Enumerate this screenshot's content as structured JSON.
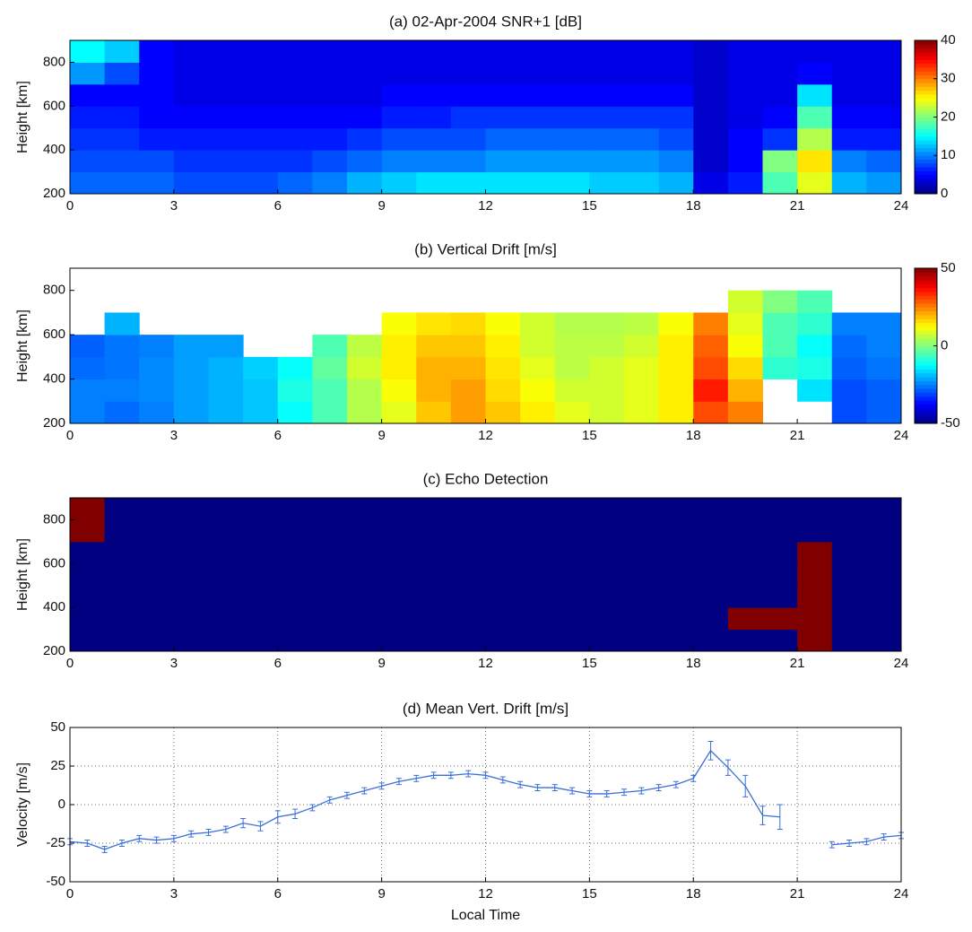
{
  "chart_data": [
    {
      "type": "heatmap",
      "title": "(a) 02-Apr-2004 SNR+1 [dB]",
      "y_label": "Height [km]",
      "colormap": "jet",
      "xlim": [
        0,
        24
      ],
      "xticks": [
        0,
        3,
        6,
        9,
        12,
        15,
        18,
        21,
        24
      ],
      "ylim": [
        200,
        900
      ],
      "yticks": [
        200,
        400,
        600,
        800
      ],
      "zlim": [
        0,
        40
      ],
      "zticks": [
        0,
        10,
        20,
        30,
        40
      ],
      "values": [
        [
          9,
          9,
          9,
          8,
          8,
          8,
          9,
          10,
          12,
          13,
          14,
          14,
          14,
          14,
          14,
          13,
          13,
          12,
          4,
          6,
          18,
          24,
          12,
          11
        ],
        [
          8,
          8,
          8,
          7,
          7,
          7,
          7,
          8,
          9,
          10,
          10,
          10,
          11,
          11,
          11,
          11,
          11,
          10,
          3,
          5,
          20,
          26,
          10,
          9
        ],
        [
          7,
          7,
          6,
          6,
          6,
          6,
          6,
          6,
          7,
          8,
          8,
          8,
          9,
          9,
          9,
          9,
          9,
          8,
          3,
          5,
          7,
          22,
          6,
          6
        ],
        [
          6,
          6,
          5,
          5,
          5,
          5,
          5,
          5,
          5,
          6,
          6,
          7,
          7,
          7,
          7,
          7,
          7,
          7,
          3,
          4,
          5,
          18,
          5,
          5
        ],
        [
          5,
          5,
          5,
          4,
          4,
          4,
          4,
          4,
          4,
          5,
          5,
          5,
          5,
          5,
          5,
          5,
          5,
          5,
          3,
          4,
          4,
          14,
          4,
          4
        ],
        [
          11,
          8,
          5,
          4,
          4,
          4,
          4,
          4,
          4,
          4,
          4,
          4,
          4,
          4,
          4,
          4,
          4,
          4,
          3,
          4,
          4,
          5,
          4,
          4
        ],
        [
          15,
          13,
          5,
          4,
          4,
          4,
          4,
          4,
          4,
          4,
          4,
          4,
          4,
          4,
          4,
          4,
          4,
          4,
          3,
          4,
          4,
          4,
          4,
          4
        ]
      ]
    },
    {
      "type": "heatmap",
      "title": "(b) Vertical Drift [m/s]",
      "y_label": "Height [km]",
      "colormap": "jet",
      "xlim": [
        0,
        24
      ],
      "xticks": [
        0,
        3,
        6,
        9,
        12,
        15,
        18,
        21,
        24
      ],
      "ylim": [
        200,
        900
      ],
      "yticks": [
        200,
        400,
        600,
        800
      ],
      "zlim": [
        -50,
        50
      ],
      "zticks": [
        -50,
        0,
        50
      ],
      "values": [
        [
          -25,
          -27,
          -25,
          -22,
          -20,
          -18,
          -12,
          -5,
          5,
          10,
          18,
          22,
          18,
          14,
          10,
          8,
          10,
          14,
          30,
          25,
          null,
          null,
          -30,
          -28
        ],
        [
          -25,
          -25,
          -24,
          -22,
          -20,
          -18,
          -10,
          -5,
          5,
          12,
          20,
          22,
          16,
          12,
          8,
          8,
          10,
          14,
          35,
          20,
          null,
          -15,
          -30,
          -28
        ],
        [
          -27,
          -26,
          -24,
          -22,
          -20,
          -17,
          -12,
          -3,
          8,
          14,
          20,
          20,
          15,
          10,
          6,
          8,
          10,
          14,
          30,
          16,
          -8,
          -10,
          -28,
          -26
        ],
        [
          -28,
          -26,
          -25,
          -22,
          -22,
          null,
          null,
          -5,
          6,
          14,
          18,
          18,
          14,
          8,
          6,
          6,
          8,
          14,
          28,
          12,
          -5,
          -12,
          -27,
          -25
        ],
        [
          null,
          -20,
          null,
          null,
          null,
          null,
          null,
          null,
          null,
          12,
          15,
          16,
          12,
          8,
          5,
          5,
          6,
          12,
          25,
          10,
          -5,
          -8,
          -25,
          -25
        ],
        [
          null,
          null,
          null,
          null,
          null,
          null,
          null,
          null,
          null,
          null,
          null,
          null,
          null,
          null,
          null,
          null,
          null,
          null,
          null,
          8,
          0,
          -5,
          null,
          null
        ],
        [
          null,
          null,
          null,
          null,
          null,
          null,
          null,
          null,
          null,
          null,
          null,
          null,
          null,
          null,
          null,
          null,
          null,
          null,
          null,
          null,
          null,
          null,
          null,
          null
        ]
      ]
    },
    {
      "type": "heatmap",
      "title": "(c) Echo Detection",
      "y_label": "Height [km]",
      "colormap": "jet",
      "xlim": [
        0,
        24
      ],
      "xticks": [
        0,
        3,
        6,
        9,
        12,
        15,
        18,
        21,
        24
      ],
      "ylim": [
        200,
        900
      ],
      "yticks": [
        200,
        400,
        600,
        800
      ],
      "zlim": [
        0,
        1
      ],
      "values": [
        [
          0,
          0,
          0,
          0,
          0,
          0,
          0,
          0,
          0,
          0,
          0,
          0,
          0,
          0,
          0,
          0,
          0,
          0,
          0,
          0,
          0,
          1,
          0,
          0
        ],
        [
          0,
          0,
          0,
          0,
          0,
          0,
          0,
          0,
          0,
          0,
          0,
          0,
          0,
          0,
          0,
          0,
          0,
          0,
          0,
          1,
          1,
          1,
          0,
          0
        ],
        [
          0,
          0,
          0,
          0,
          0,
          0,
          0,
          0,
          0,
          0,
          0,
          0,
          0,
          0,
          0,
          0,
          0,
          0,
          0,
          0,
          0,
          1,
          0,
          0
        ],
        [
          0,
          0,
          0,
          0,
          0,
          0,
          0,
          0,
          0,
          0,
          0,
          0,
          0,
          0,
          0,
          0,
          0,
          0,
          0,
          0,
          0,
          1,
          0,
          0
        ],
        [
          0,
          0,
          0,
          0,
          0,
          0,
          0,
          0,
          0,
          0,
          0,
          0,
          0,
          0,
          0,
          0,
          0,
          0,
          0,
          0,
          0,
          1,
          0,
          0
        ],
        [
          1,
          0,
          0,
          0,
          0,
          0,
          0,
          0,
          0,
          0,
          0,
          0,
          0,
          0,
          0,
          0,
          0,
          0,
          0,
          0,
          0,
          0,
          0,
          0
        ],
        [
          1,
          0,
          0,
          0,
          0,
          0,
          0,
          0,
          0,
          0,
          0,
          0,
          0,
          0,
          0,
          0,
          0,
          0,
          0,
          0,
          0,
          0,
          0,
          0
        ]
      ]
    },
    {
      "type": "line",
      "title": "(d) Mean Vert. Drift [m/s]",
      "x_label": "Local Time",
      "y_label": "Velocity [m/s]",
      "grid": true,
      "color": "#3a6fd8",
      "xlim": [
        0,
        24
      ],
      "xticks": [
        0,
        3,
        6,
        9,
        12,
        15,
        18,
        21,
        24
      ],
      "ylim": [
        -50,
        50
      ],
      "yticks": [
        -50,
        -25,
        0,
        25,
        50
      ],
      "x": [
        0,
        0.5,
        1,
        1.5,
        2,
        2.5,
        3,
        3.5,
        4,
        4.5,
        5,
        5.5,
        6,
        6.5,
        7,
        7.5,
        8,
        8.5,
        9,
        9.5,
        10,
        10.5,
        11,
        11.5,
        12,
        12.5,
        13,
        13.5,
        14,
        14.5,
        15,
        15.5,
        16,
        16.5,
        17,
        17.5,
        18,
        18.5,
        19,
        19.5,
        20,
        20.5,
        21,
        21.5,
        22,
        22.5,
        23,
        23.5,
        24
      ],
      "values": [
        -24,
        -25,
        -29,
        -25,
        -22,
        -23,
        -22,
        -19,
        -18,
        -16,
        -12,
        -14,
        -8,
        -6,
        -2,
        3,
        6,
        9,
        12,
        15,
        17,
        19,
        19,
        20,
        19,
        16,
        13,
        11,
        11,
        9,
        7,
        7,
        8,
        9,
        11,
        13,
        17,
        35,
        24,
        12,
        -7,
        -8,
        null,
        null,
        -26,
        -25,
        -24,
        -21,
        -20
      ],
      "errors": [
        2,
        2,
        2,
        2,
        2,
        2,
        2,
        2,
        2,
        2,
        3,
        3,
        4,
        3,
        2,
        2,
        2,
        2,
        2,
        2,
        2,
        2,
        2,
        2,
        2,
        2,
        2,
        2,
        2,
        2,
        2,
        2,
        2,
        2,
        2,
        2,
        2,
        6,
        5,
        7,
        6,
        8,
        null,
        null,
        2,
        2,
        2,
        2,
        2
      ]
    }
  ]
}
